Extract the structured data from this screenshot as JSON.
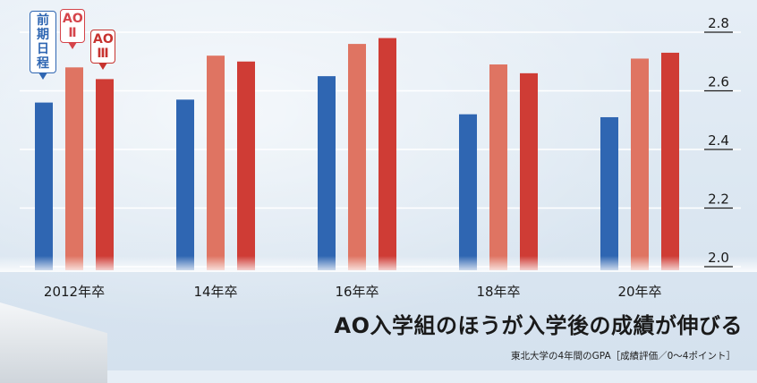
{
  "chart_data": {
    "type": "bar",
    "categories": [
      "2012年卒",
      "14年卒",
      "16年卒",
      "18年卒",
      "20年卒"
    ],
    "series": [
      {
        "name": "前期日程",
        "values": [
          2.56,
          2.57,
          2.65,
          2.52,
          2.51
        ]
      },
      {
        "name": "AOⅡ",
        "values": [
          2.68,
          2.72,
          2.76,
          2.69,
          2.71
        ]
      },
      {
        "name": "AOⅢ",
        "values": [
          2.64,
          2.7,
          2.78,
          2.66,
          2.73
        ]
      }
    ],
    "yticks": [
      "2.0",
      "2.2",
      "2.4",
      "2.6",
      "2.8"
    ],
    "ylim": [
      2.0,
      2.8
    ],
    "grid": true,
    "colors": [
      "#2f66b2",
      "#df7462",
      "#cf3c35"
    ]
  },
  "legend": [
    {
      "chars": [
        "前",
        "期",
        "日",
        "程"
      ],
      "color": "#2f66b2"
    },
    {
      "chars": [
        "AO",
        "Ⅱ"
      ],
      "color": "#d5444a"
    },
    {
      "chars": [
        "AO",
        "Ⅲ"
      ],
      "color": "#c7332f"
    }
  ],
  "headline": "AO入学組のほうが入学後の成績が伸びる",
  "source_note": "東北大学の4年間のGPA［成績評価／0〜4ポイント］"
}
